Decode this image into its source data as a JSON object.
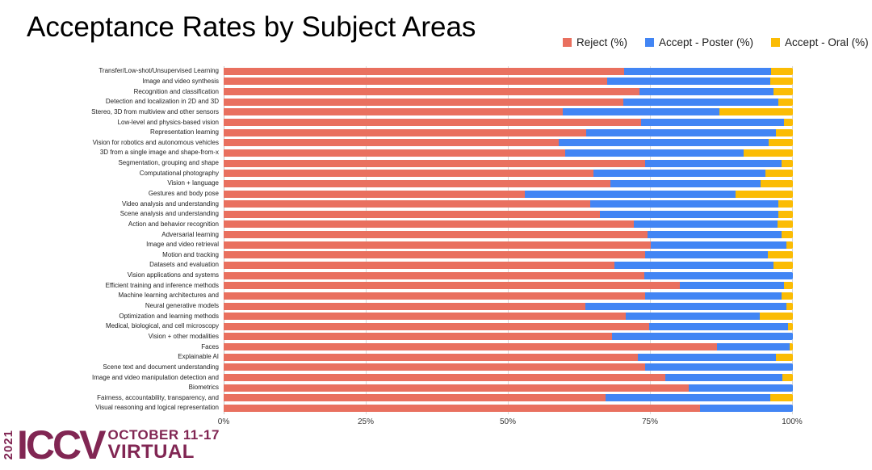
{
  "title": "Acceptance Rates by Subject Areas",
  "footer": {
    "year": "2021",
    "conference": "ICCV",
    "dates": "OCTOBER 11-17",
    "mode": "VIRTUAL",
    "color": "#812653"
  },
  "axis": {
    "tick_labels": [
      "0%",
      "25%",
      "50%",
      "75%",
      "100%"
    ],
    "tick_values": [
      0,
      25,
      50,
      75,
      100
    ]
  },
  "chart_data": {
    "type": "bar",
    "orientation": "horizontal",
    "stacked": true,
    "title": "Acceptance Rates by Subject Areas",
    "xlabel": "",
    "ylabel": "",
    "xlim": [
      0,
      100
    ],
    "grid": true,
    "legend_position": "top-right",
    "categories": [
      "Transfer/Low-shot/Unsupervised Learning",
      "Image and video synthesis",
      "Recognition and classification",
      "Detection and localization in 2D and 3D",
      "Stereo, 3D from multiview and other sensors",
      "Low-level and physics-based vision",
      "Representation learning",
      "Vision for robotics and autonomous vehicles",
      "3D from a single image and shape-from-x",
      "Segmentation, grouping and shape",
      "Computational photography",
      "Vision + language",
      "Gestures and body pose",
      "Video analysis and understanding",
      "Scene analysis and understanding",
      "Action and behavior recognition",
      "Adversarial learning",
      "Image and video retrieval",
      "Motion and tracking",
      "Datasets and evaluation",
      "Vision applications and systems",
      "Efficient training and inference methods",
      "Machine learning architectures and",
      "Neural generative models",
      "Optimization and learning methods",
      "Medical, biological, and cell microscopy",
      "Vision + other modalities",
      "Faces",
      "Explainable AI",
      "Scene text and document understanding",
      "Image and video manipulation detection and",
      "Biometrics",
      "Fairness, accountability, transparency, and",
      "Visual reasoning and logical representation"
    ],
    "series": [
      {
        "name": "Reject (%)",
        "color": "#E9705F",
        "values": [
          70.4,
          67.4,
          73.0,
          70.2,
          59.6,
          73.4,
          63.7,
          58.9,
          60.0,
          74.0,
          64.9,
          67.9,
          52.9,
          64.4,
          66.1,
          72.1,
          74.4,
          75.0,
          74.0,
          68.6,
          73.9,
          80.1,
          74.0,
          63.6,
          70.6,
          74.8,
          68.2,
          86.6,
          72.8,
          74.1,
          77.6,
          81.7,
          67.1,
          83.7
        ]
      },
      {
        "name": "Accept - Poster (%)",
        "color": "#4285F4",
        "values": [
          25.8,
          28.7,
          23.6,
          27.2,
          27.5,
          25.0,
          33.3,
          36.8,
          31.4,
          24.0,
          30.3,
          26.4,
          37.1,
          33.1,
          31.4,
          25.2,
          23.6,
          23.9,
          21.6,
          28.0,
          26.1,
          18.3,
          24.0,
          35.3,
          23.6,
          24.4,
          31.8,
          12.8,
          24.2,
          25.9,
          20.6,
          18.3,
          29.0,
          16.3
        ]
      },
      {
        "name": "Accept - Oral (%)",
        "color": "#FBBC04",
        "values": [
          3.8,
          3.9,
          3.4,
          2.6,
          12.9,
          1.6,
          3.0,
          4.3,
          8.6,
          2.0,
          4.8,
          5.7,
          10.0,
          2.5,
          2.5,
          2.7,
          2.0,
          1.1,
          4.4,
          3.4,
          0.0,
          1.6,
          2.0,
          1.1,
          5.8,
          0.8,
          0.0,
          0.6,
          3.0,
          0.0,
          1.8,
          0.0,
          3.9,
          0.0
        ]
      }
    ]
  }
}
